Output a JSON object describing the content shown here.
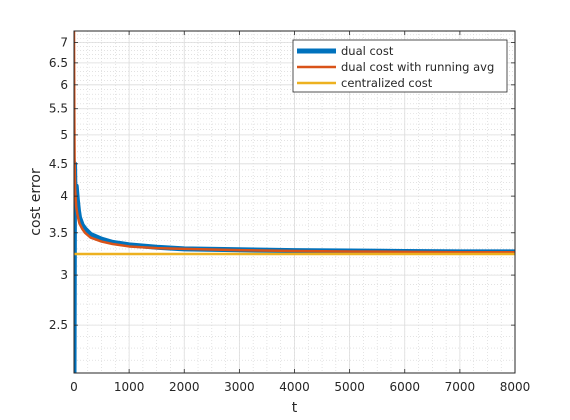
{
  "chart_data": {
    "type": "line",
    "title": "",
    "xlabel": "t",
    "ylabel": "cost error",
    "xlim": [
      0,
      8000
    ],
    "ylim": [
      2.1,
      7.3
    ],
    "yscale": "log",
    "grid": true,
    "minor_grid": true,
    "legend_position": "top-right",
    "xticks": [
      0,
      1000,
      2000,
      3000,
      4000,
      5000,
      6000,
      7000,
      8000
    ],
    "xtick_labels": [
      "0",
      "1000",
      "2000",
      "3000",
      "4000",
      "5000",
      "6000",
      "7000",
      "8000"
    ],
    "yticks": [
      2.5,
      3,
      3.5,
      4,
      4.5,
      5,
      5.5,
      6,
      6.5,
      7
    ],
    "ytick_labels": [
      "2.5",
      "3",
      "3.5",
      "4",
      "4.5",
      "5",
      "5.5",
      "6",
      "6.5",
      "7"
    ],
    "series": [
      {
        "name": "dual cost",
        "color": "#0072BD",
        "x": [
          0,
          10,
          20,
          40,
          60,
          80,
          100,
          150,
          200,
          300,
          500,
          700,
          1000,
          1500,
          2000,
          3000,
          4000,
          5000,
          6000,
          7000,
          8000
        ],
        "y": [
          2.1,
          4.5,
          3.9,
          4.15,
          3.95,
          3.8,
          3.7,
          3.6,
          3.55,
          3.48,
          3.42,
          3.38,
          3.35,
          3.32,
          3.3,
          3.29,
          3.28,
          3.275,
          3.27,
          3.265,
          3.265
        ]
      },
      {
        "name": "dual cost with running avg",
        "color": "#D95319",
        "x": [
          0,
          5,
          10,
          20,
          40,
          60,
          80,
          100,
          150,
          200,
          300,
          500,
          700,
          1000,
          1500,
          2000,
          3000,
          4000,
          5000,
          6000,
          7000,
          8000
        ],
        "y": [
          7.3,
          5.5,
          4.6,
          4.1,
          3.85,
          3.75,
          3.68,
          3.62,
          3.55,
          3.5,
          3.44,
          3.39,
          3.36,
          3.33,
          3.31,
          3.3,
          3.285,
          3.275,
          3.27,
          3.265,
          3.26,
          3.26
        ]
      },
      {
        "name": "centralized cost",
        "color": "#EDB120",
        "x": [
          0,
          8000
        ],
        "y": [
          3.24,
          3.24
        ]
      }
    ]
  }
}
